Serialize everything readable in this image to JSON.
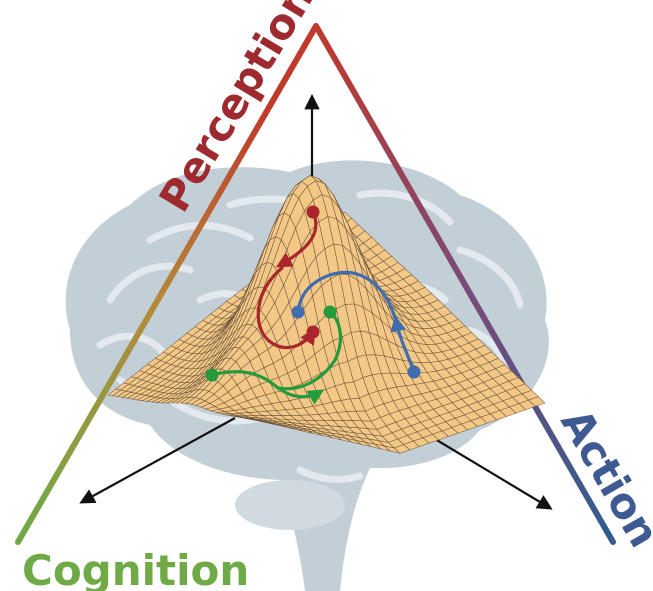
{
  "labels": {
    "perception": "Perception",
    "action": "Action",
    "cognition": "Cognition"
  },
  "colors": {
    "perception": "#9e2a2f",
    "action": "#3f5a93",
    "cognition": "#6faa46",
    "surface": "#f3c887",
    "surface_grid": "#5b4630",
    "brain": "#b9c7d1",
    "arrow": "#111111",
    "trajectory_red": "#a8262c",
    "trajectory_blue": "#3f6db0",
    "trajectory_green": "#239a3c"
  }
}
